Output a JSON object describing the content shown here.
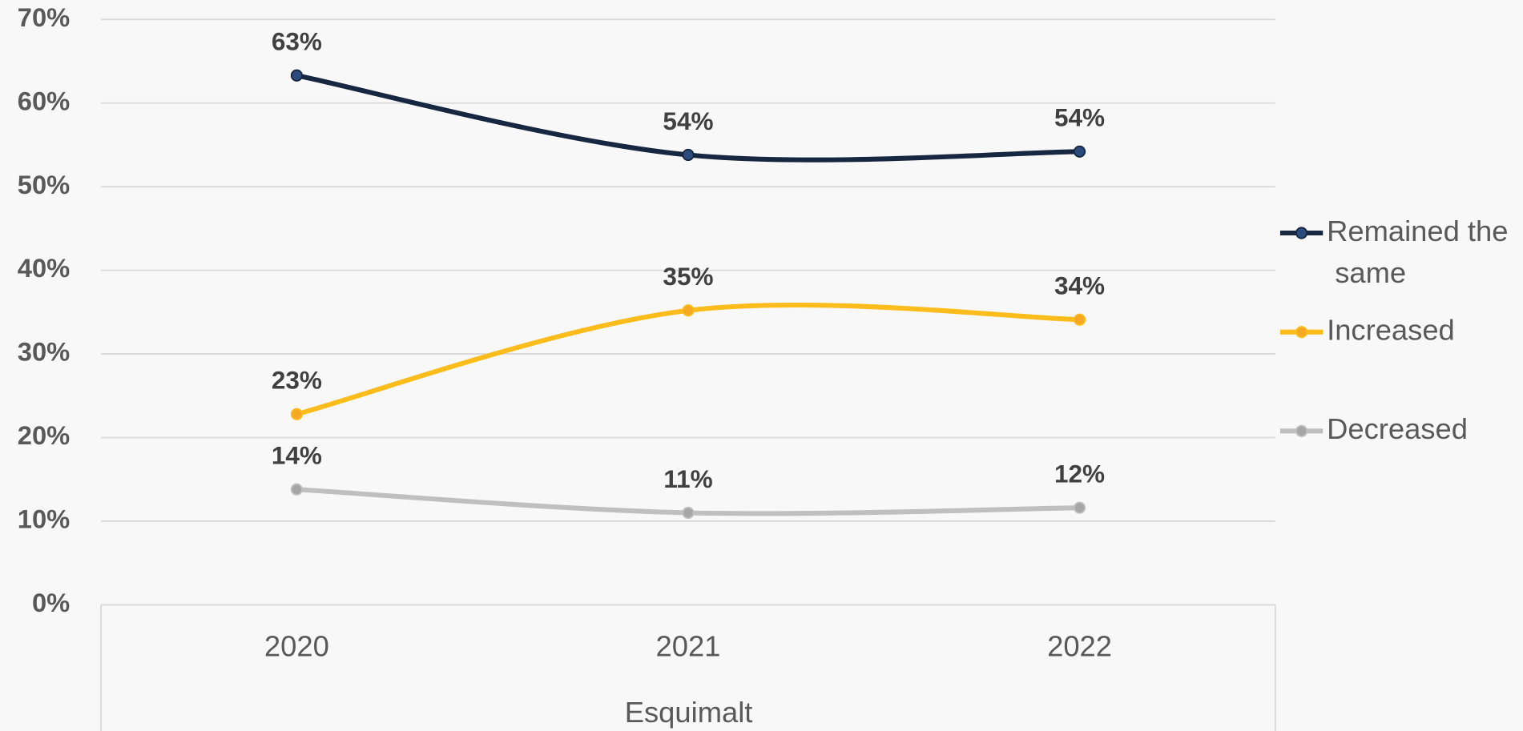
{
  "chart_data": {
    "type": "line",
    "categories": [
      "2020",
      "2021",
      "2022"
    ],
    "x_label": "Esquimalt",
    "series": [
      {
        "name": "Remained the same",
        "color": "#172641",
        "marker_color": "#2a4b7c",
        "values": [
          63.3,
          53.8,
          54.2
        ],
        "value_labels": [
          "63%",
          "54%",
          "54%"
        ]
      },
      {
        "name": "Increased",
        "color": "#fbbc1c",
        "marker_color": "#f7a823",
        "values": [
          22.8,
          35.2,
          34.1
        ],
        "value_labels": [
          "23%",
          "35%",
          "34%"
        ]
      },
      {
        "name": "Decreased",
        "color": "#bfbfbf",
        "marker_color": "#a6a6a6",
        "values": [
          13.8,
          11.0,
          11.6
        ],
        "value_labels": [
          "14%",
          "11%",
          "12%"
        ]
      }
    ],
    "ylim": [
      0,
      70
    ],
    "yticks": [
      {
        "value": 0,
        "label": "0%"
      },
      {
        "value": 10,
        "label": "10%"
      },
      {
        "value": 20,
        "label": "20%"
      },
      {
        "value": 30,
        "label": "30%"
      },
      {
        "value": 40,
        "label": "40%"
      },
      {
        "value": 50,
        "label": "50%"
      },
      {
        "value": 60,
        "label": "60%"
      },
      {
        "value": 70,
        "label": "70%"
      }
    ],
    "grid": true,
    "legend": "right",
    "smooth": true
  }
}
